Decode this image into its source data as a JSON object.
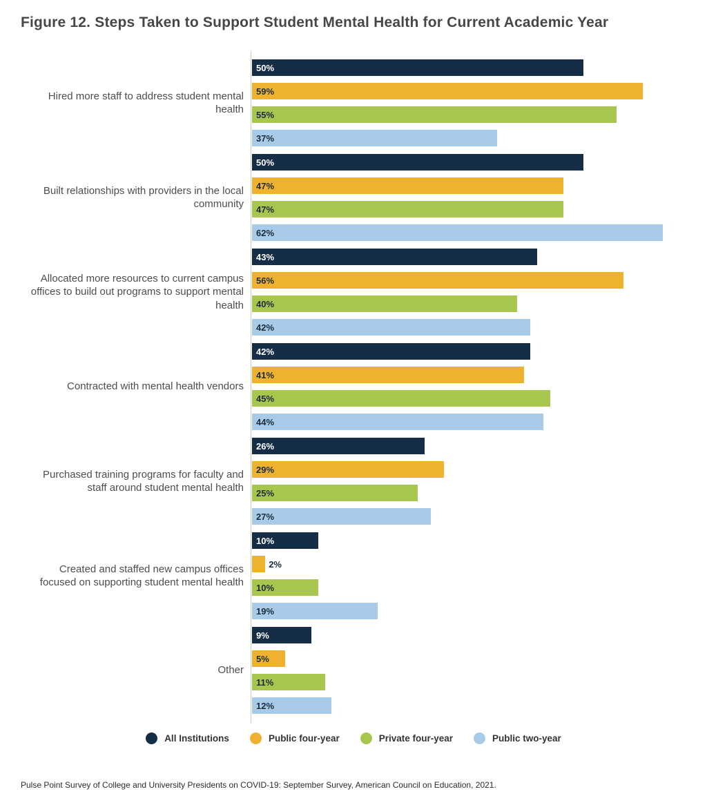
{
  "title": "Figure 12. Steps Taken to Support Student Mental Health for Current Academic Year",
  "source": "Pulse Point Survey of College and University Presidents on COVID-19: September Survey, American Council on Education, 2021.",
  "chart_data": {
    "type": "bar",
    "orientation": "horizontal",
    "title": "Figure 12. Steps Taken to Support Student Mental Health for Current Academic Year",
    "categories": [
      "Hired more staff to address student mental health",
      "Built relationships with providers in the local community",
      "Allocated more resources to current campus offices to build out programs to support mental health",
      "Contracted with mental health vendors",
      "Purchased training programs for faculty and staff around student mental health",
      "Created and staffed new campus offices focused on supporting student mental health",
      "Other"
    ],
    "series": [
      {
        "name": "All Institutions",
        "color": "#152D46",
        "label_color": "#ffffff",
        "values": [
          50,
          50,
          43,
          42,
          26,
          10,
          9
        ]
      },
      {
        "name": "Public four-year",
        "color": "#EFB22F",
        "label_color": "#1a2b3c",
        "values": [
          59,
          47,
          56,
          41,
          29,
          2,
          5
        ]
      },
      {
        "name": "Private four-year",
        "color": "#A6C64D",
        "label_color": "#1a2b3c",
        "values": [
          55,
          47,
          40,
          45,
          25,
          10,
          11
        ]
      },
      {
        "name": "Public two-year",
        "color": "#A7CBE8",
        "label_color": "#1a2b3c",
        "values": [
          37,
          62,
          42,
          44,
          27,
          19,
          12
        ]
      }
    ],
    "value_suffix": "%",
    "xlim": [
      0,
      65
    ],
    "grid": false,
    "legend_position": "bottom",
    "axis_line_color": "#cccccc"
  }
}
